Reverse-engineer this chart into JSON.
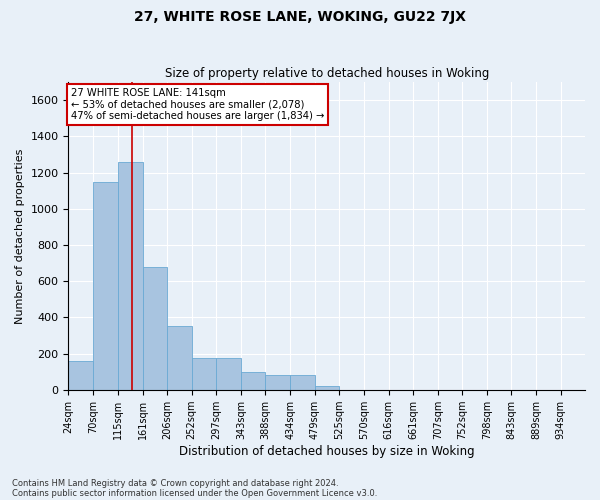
{
  "title": "27, WHITE ROSE LANE, WOKING, GU22 7JX",
  "subtitle": "Size of property relative to detached houses in Woking",
  "xlabel": "Distribution of detached houses by size in Woking",
  "ylabel": "Number of detached properties",
  "footnote1": "Contains HM Land Registry data © Crown copyright and database right 2024.",
  "footnote2": "Contains public sector information licensed under the Open Government Licence v3.0.",
  "annotation_line1": "27 WHITE ROSE LANE: 141sqm",
  "annotation_line2": "← 53% of detached houses are smaller (2,078)",
  "annotation_line3": "47% of semi-detached houses are larger (1,834) →",
  "bar_color": "#a8c4e0",
  "bar_edge_color": "#6aaad4",
  "redline_x": 141,
  "redline_color": "#cc0000",
  "categories": [
    "24sqm",
    "70sqm",
    "115sqm",
    "161sqm",
    "206sqm",
    "252sqm",
    "297sqm",
    "343sqm",
    "388sqm",
    "434sqm",
    "479sqm",
    "525sqm",
    "570sqm",
    "616sqm",
    "661sqm",
    "707sqm",
    "752sqm",
    "798sqm",
    "843sqm",
    "889sqm",
    "934sqm"
  ],
  "bin_edges": [
    24,
    70,
    115,
    161,
    206,
    252,
    297,
    343,
    388,
    434,
    479,
    525,
    570,
    616,
    661,
    707,
    752,
    798,
    843,
    889,
    934,
    979
  ],
  "bar_heights": [
    160,
    1150,
    1260,
    680,
    350,
    175,
    175,
    100,
    80,
    80,
    20,
    0,
    0,
    0,
    0,
    0,
    0,
    0,
    0,
    0,
    0
  ],
  "ylim": [
    0,
    1700
  ],
  "yticks": [
    0,
    200,
    400,
    600,
    800,
    1000,
    1200,
    1400,
    1600
  ],
  "background_color": "#e8f0f8",
  "plot_bg_color": "#e8f0f8",
  "grid_color": "#ffffff",
  "annotation_box_color": "#ffffff",
  "annotation_box_edge": "#cc0000",
  "fig_width": 6.0,
  "fig_height": 5.0,
  "dpi": 100
}
